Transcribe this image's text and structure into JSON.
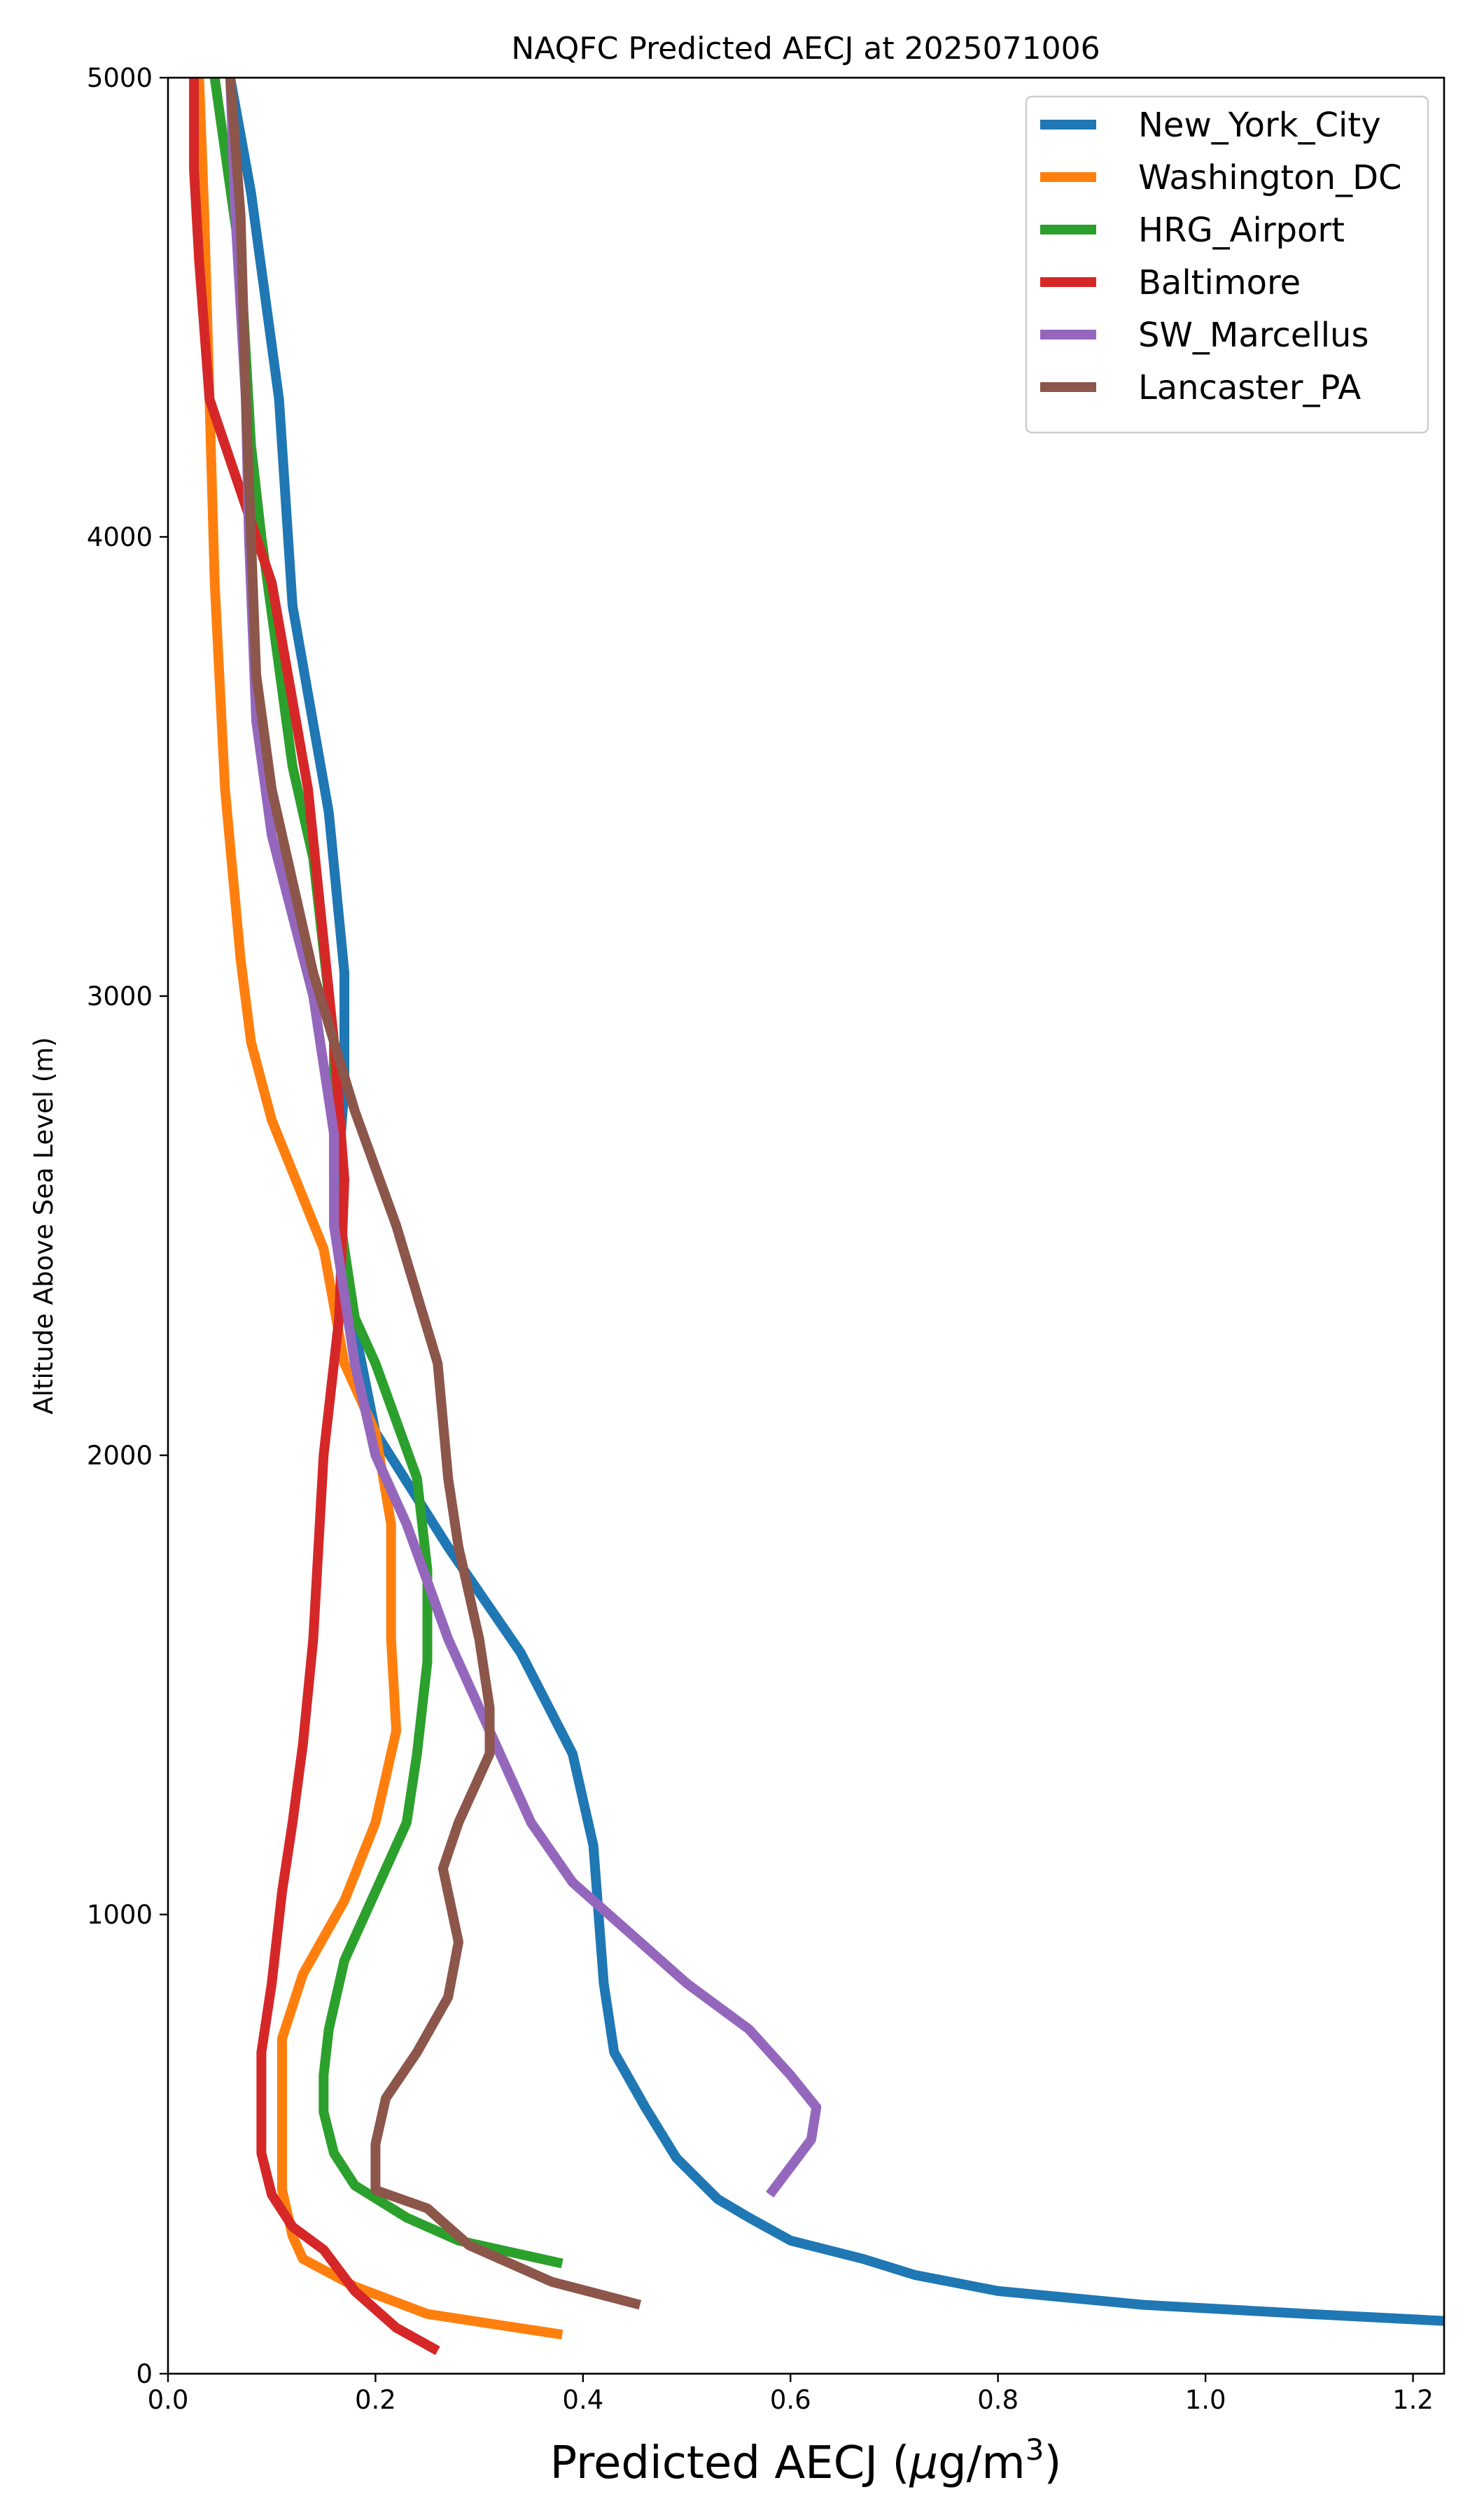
{
  "chart_data": {
    "type": "line",
    "title": "NAQFC Predicted AECJ at 2025071006",
    "xlabel_main": "Predicted AECJ (",
    "xlabel_mu": "μ",
    "xlabel_unit": "g/m",
    "xlabel_sup": "3",
    "xlabel_end": ")",
    "ylabel": "Altitude Above Sea Level (m)",
    "xlim": [
      0.0,
      1.23
    ],
    "ylim": [
      0,
      5000
    ],
    "xticks": [
      "0.0",
      "0.2",
      "0.4",
      "0.6",
      "0.8",
      "1.0",
      "1.2"
    ],
    "xtick_values": [
      0.0,
      0.2,
      0.4,
      0.6,
      0.8,
      1.0,
      1.2
    ],
    "yticks": [
      "0",
      "1000",
      "2000",
      "3000",
      "4000",
      "5000"
    ],
    "ytick_values": [
      0,
      1000,
      2000,
      3000,
      4000,
      5000
    ],
    "legend_position": "top-right",
    "series": [
      {
        "name": "New_York_City",
        "color": "#1f77b4",
        "points": [
          [
            1.23,
            115
          ],
          [
            1.1,
            130
          ],
          [
            0.94,
            150
          ],
          [
            0.8,
            180
          ],
          [
            0.72,
            215
          ],
          [
            0.67,
            250
          ],
          [
            0.6,
            290
          ],
          [
            0.56,
            340
          ],
          [
            0.53,
            380
          ],
          [
            0.49,
            470
          ],
          [
            0.46,
            580
          ],
          [
            0.43,
            700
          ],
          [
            0.42,
            850
          ],
          [
            0.41,
            1150
          ],
          [
            0.4,
            1250
          ],
          [
            0.39,
            1350
          ],
          [
            0.34,
            1570
          ],
          [
            0.27,
            1800
          ],
          [
            0.2,
            2050
          ],
          [
            0.16,
            2500
          ],
          [
            0.17,
            2800
          ],
          [
            0.17,
            3050
          ],
          [
            0.155,
            3400
          ],
          [
            0.12,
            3850
          ],
          [
            0.107,
            4300
          ],
          [
            0.08,
            4750
          ],
          [
            0.06,
            5000
          ]
        ]
      },
      {
        "name": "Washington_DC",
        "color": "#ff7f0e",
        "points": [
          [
            0.38,
            85
          ],
          [
            0.25,
            130
          ],
          [
            0.18,
            190
          ],
          [
            0.13,
            250
          ],
          [
            0.12,
            300
          ],
          [
            0.11,
            400
          ],
          [
            0.11,
            500
          ],
          [
            0.11,
            730
          ],
          [
            0.13,
            870
          ],
          [
            0.17,
            1030
          ],
          [
            0.2,
            1200
          ],
          [
            0.22,
            1400
          ],
          [
            0.215,
            1600
          ],
          [
            0.215,
            1850
          ],
          [
            0.2,
            2050
          ],
          [
            0.17,
            2200
          ],
          [
            0.15,
            2450
          ],
          [
            0.1,
            2730
          ],
          [
            0.08,
            2900
          ],
          [
            0.07,
            3080
          ],
          [
            0.055,
            3450
          ],
          [
            0.045,
            3900
          ],
          [
            0.04,
            4300
          ],
          [
            0.035,
            4700
          ],
          [
            0.03,
            5000
          ]
        ]
      },
      {
        "name": "HRG_Airport",
        "color": "#2ca02c",
        "points": [
          [
            0.38,
            240
          ],
          [
            0.28,
            290
          ],
          [
            0.23,
            340
          ],
          [
            0.18,
            410
          ],
          [
            0.16,
            480
          ],
          [
            0.15,
            570
          ],
          [
            0.15,
            650
          ],
          [
            0.155,
            750
          ],
          [
            0.17,
            900
          ],
          [
            0.2,
            1050
          ],
          [
            0.23,
            1200
          ],
          [
            0.24,
            1350
          ],
          [
            0.25,
            1550
          ],
          [
            0.25,
            1750
          ],
          [
            0.24,
            1950
          ],
          [
            0.2,
            2200
          ],
          [
            0.18,
            2300
          ],
          [
            0.16,
            2600
          ],
          [
            0.16,
            2900
          ],
          [
            0.14,
            3300
          ],
          [
            0.12,
            3500
          ],
          [
            0.09,
            4000
          ],
          [
            0.08,
            4200
          ],
          [
            0.07,
            4600
          ],
          [
            0.045,
            5000
          ]
        ]
      },
      {
        "name": "Baltimore",
        "color": "#d62728",
        "points": [
          [
            0.26,
            50
          ],
          [
            0.22,
            100
          ],
          [
            0.18,
            180
          ],
          [
            0.15,
            270
          ],
          [
            0.12,
            320
          ],
          [
            0.1,
            390
          ],
          [
            0.09,
            480
          ],
          [
            0.09,
            570
          ],
          [
            0.09,
            700
          ],
          [
            0.1,
            850
          ],
          [
            0.11,
            1050
          ],
          [
            0.12,
            1200
          ],
          [
            0.13,
            1370
          ],
          [
            0.14,
            1600
          ],
          [
            0.145,
            1800
          ],
          [
            0.15,
            2000
          ],
          [
            0.165,
            2300
          ],
          [
            0.17,
            2600
          ],
          [
            0.16,
            2900
          ],
          [
            0.135,
            3450
          ],
          [
            0.1,
            3900
          ],
          [
            0.07,
            4100
          ],
          [
            0.04,
            4300
          ],
          [
            0.03,
            4600
          ],
          [
            0.025,
            4800
          ],
          [
            0.025,
            5000
          ]
        ]
      },
      {
        "name": "SW_Marcellus",
        "color": "#9467bd",
        "points": [
          [
            0.58,
            390
          ],
          [
            0.6,
            450
          ],
          [
            0.62,
            510
          ],
          [
            0.625,
            580
          ],
          [
            0.6,
            650
          ],
          [
            0.56,
            750
          ],
          [
            0.5,
            850
          ],
          [
            0.45,
            950
          ],
          [
            0.39,
            1070
          ],
          [
            0.35,
            1200
          ],
          [
            0.33,
            1300
          ],
          [
            0.27,
            1600
          ],
          [
            0.23,
            1850
          ],
          [
            0.2,
            2000
          ],
          [
            0.18,
            2200
          ],
          [
            0.16,
            2500
          ],
          [
            0.16,
            2700
          ],
          [
            0.14,
            3000
          ],
          [
            0.1,
            3350
          ],
          [
            0.085,
            3600
          ],
          [
            0.078,
            4000
          ],
          [
            0.075,
            4300
          ],
          [
            0.065,
            4700
          ],
          [
            0.06,
            5000
          ]
        ]
      },
      {
        "name": "Lancaster_PA",
        "color": "#8c564b",
        "points": [
          [
            0.455,
            150
          ],
          [
            0.37,
            200
          ],
          [
            0.29,
            280
          ],
          [
            0.25,
            360
          ],
          [
            0.2,
            400
          ],
          [
            0.2,
            450
          ],
          [
            0.2,
            500
          ],
          [
            0.21,
            600
          ],
          [
            0.24,
            700
          ],
          [
            0.27,
            820
          ],
          [
            0.28,
            940
          ],
          [
            0.265,
            1100
          ],
          [
            0.28,
            1200
          ],
          [
            0.31,
            1350
          ],
          [
            0.31,
            1450
          ],
          [
            0.3,
            1600
          ],
          [
            0.28,
            1800
          ],
          [
            0.27,
            1950
          ],
          [
            0.26,
            2200
          ],
          [
            0.22,
            2500
          ],
          [
            0.18,
            2750
          ],
          [
            0.14,
            3050
          ],
          [
            0.1,
            3450
          ],
          [
            0.085,
            3700
          ],
          [
            0.08,
            4000
          ],
          [
            0.075,
            4300
          ],
          [
            0.07,
            4700
          ],
          [
            0.06,
            5000
          ]
        ]
      }
    ]
  }
}
